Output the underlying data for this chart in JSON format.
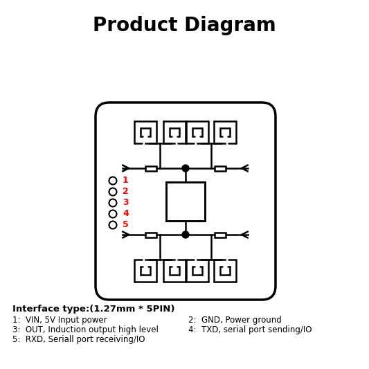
{
  "title": "Product Diagram",
  "bg_color": "#ffffff",
  "line_color": "#000000",
  "red_color": "#ff0000",
  "interface_line": "Interface type:(1.27mm * 5PIN)",
  "pin_labels_col1": [
    "1:  VIN, 5V Input power",
    "3:  OUT, Induction output high level",
    "5:  RXD, Seriall port receiving/IO"
  ],
  "pin_labels_col2": [
    "2:  GND, Power ground",
    "4:  TXD, serial port sending/IO"
  ],
  "pin_numbers": [
    "1",
    "2",
    "3",
    "4",
    "5"
  ],
  "figsize": [
    5.33,
    5.33
  ],
  "dpi": 100
}
